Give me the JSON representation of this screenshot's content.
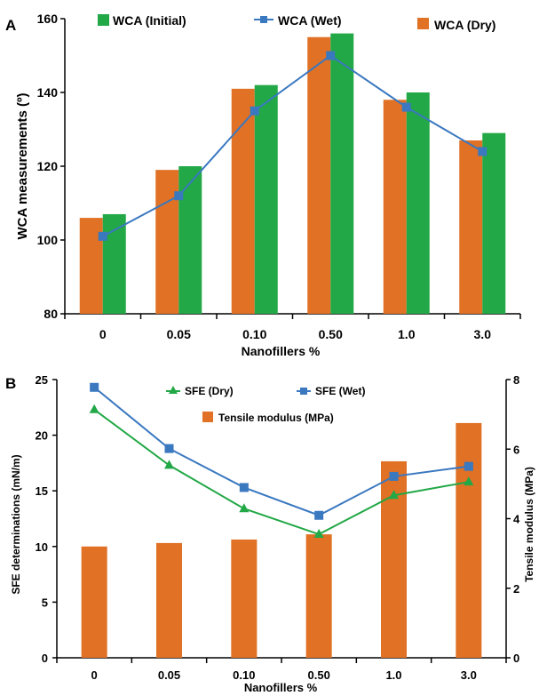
{
  "chart_data": [
    {
      "panel": "A",
      "type": "bar",
      "categories": [
        "0",
        "0.05",
        "0.10",
        "0.50",
        "1.0",
        "3.0"
      ],
      "xlabel": "Nanofillers %",
      "ylabel": "WCA measurements (º)",
      "ylim": [
        80,
        160
      ],
      "yticks": [
        80,
        100,
        120,
        140,
        160
      ],
      "series": [
        {
          "name": "WCA (Dry)",
          "kind": "bar",
          "color": "#E07125",
          "values": [
            106,
            119,
            141,
            155,
            138,
            127
          ]
        },
        {
          "name": "WCA (Initial)",
          "kind": "bar",
          "color": "#22A846",
          "values": [
            107,
            120,
            142,
            156,
            140,
            129
          ]
        },
        {
          "name": "WCA (Wet)",
          "kind": "line",
          "color": "#3A78C0",
          "values": [
            101,
            112,
            135,
            150,
            136,
            124
          ]
        }
      ],
      "legend": [
        "WCA (Initial)",
        "WCA (Wet)",
        "WCA (Dry)"
      ],
      "grid": false
    },
    {
      "panel": "B",
      "type": "bar",
      "categories": [
        "0",
        "0.05",
        "0.10",
        "0.50",
        "1.0",
        "3.0"
      ],
      "xlabel": "Nanofillers %",
      "ylabel": "SFE determinations (mN/m)",
      "y2label": "Tensile modulus (MPa)",
      "ylim": [
        0,
        25
      ],
      "yticks": [
        0,
        5,
        10,
        15,
        20,
        25
      ],
      "y2lim": [
        0,
        8
      ],
      "y2ticks": [
        0,
        2,
        4,
        6,
        8
      ],
      "series": [
        {
          "name": "Tensile modulus (MPa)",
          "kind": "bar",
          "axis": "right",
          "color": "#E07125",
          "values": [
            3.2,
            3.3,
            3.4,
            3.55,
            5.65,
            6.75
          ]
        },
        {
          "name": "SFE (Dry)",
          "kind": "line",
          "marker": "triangle",
          "color": "#22A846",
          "values": [
            22.3,
            17.3,
            13.4,
            11.1,
            14.6,
            15.8
          ]
        },
        {
          "name": "SFE (Wet)",
          "kind": "line",
          "marker": "square",
          "color": "#3A78C0",
          "values": [
            24.3,
            18.8,
            15.3,
            12.8,
            16.3,
            17.2
          ]
        }
      ],
      "legend": [
        "SFE (Dry)",
        "SFE (Wet)",
        "Tensile modulus (MPa)"
      ],
      "grid": false
    }
  ]
}
